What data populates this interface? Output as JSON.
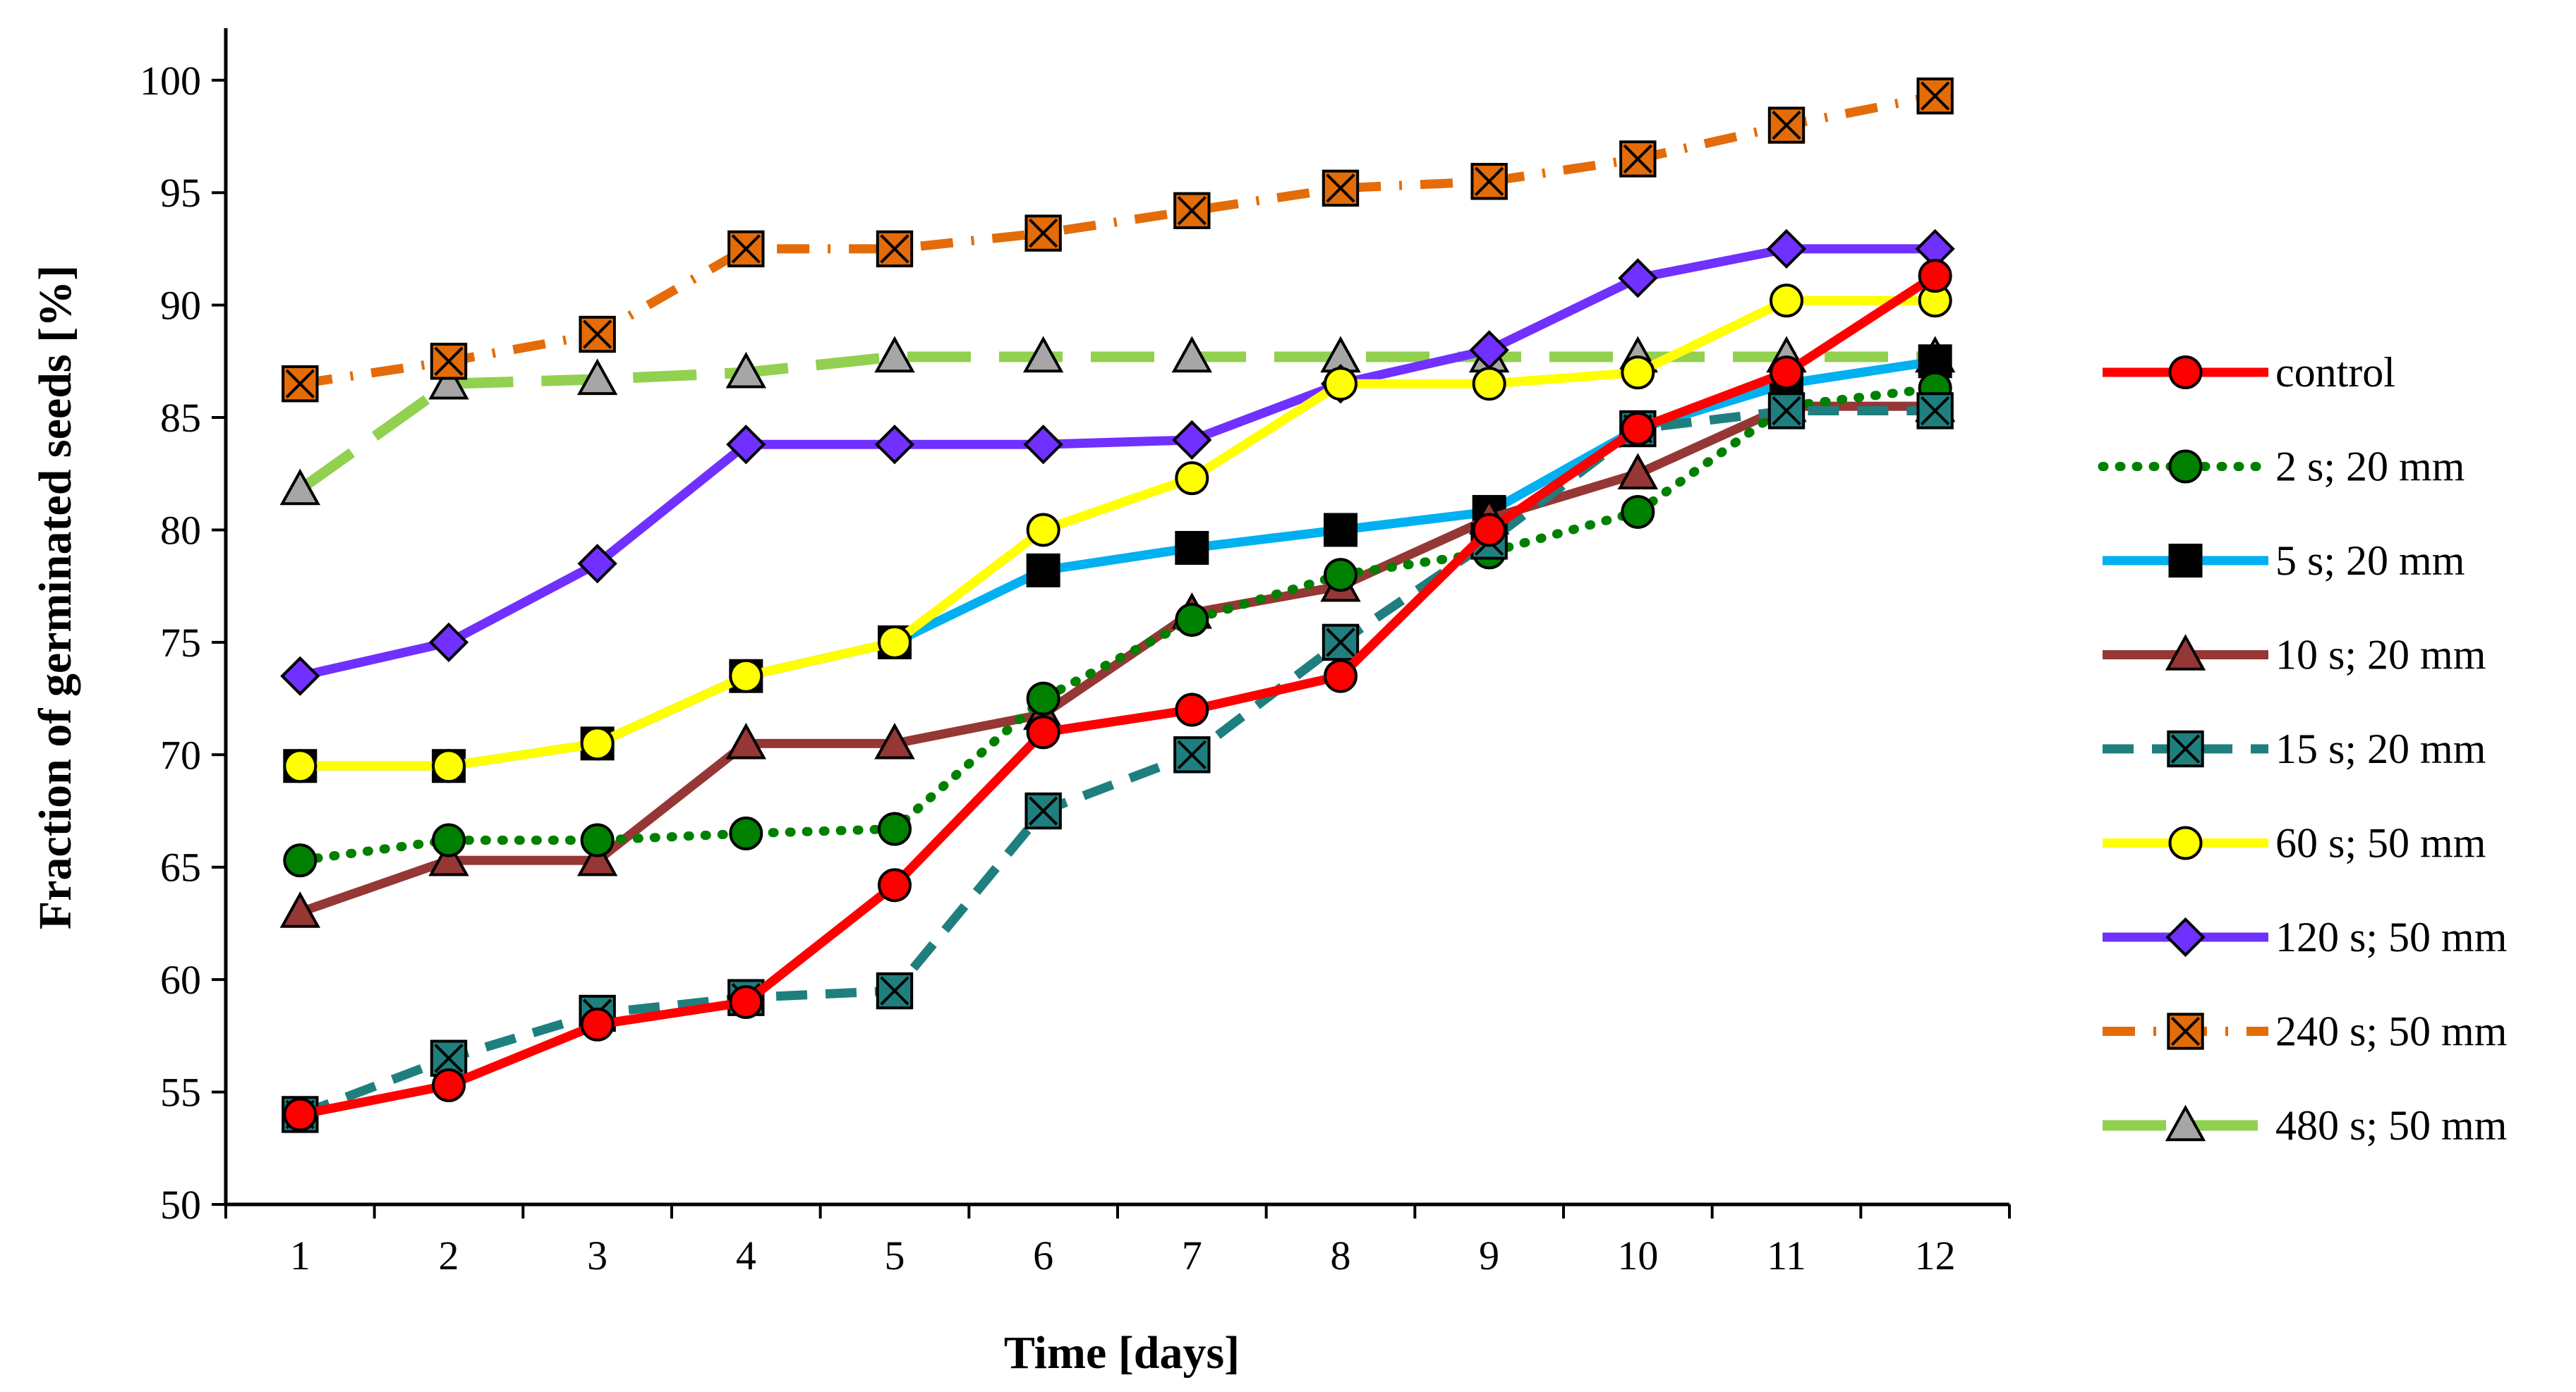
{
  "chart_data": {
    "type": "line",
    "title": "",
    "xlabel": "Time [days]",
    "ylabel": "Fraction of germinated seeds [%]",
    "x": [
      1,
      2,
      3,
      4,
      5,
      6,
      7,
      8,
      9,
      10,
      11,
      12
    ],
    "xlim": [
      0.5,
      12.5
    ],
    "ylim": [
      50,
      102
    ],
    "yticks": [
      50,
      55,
      60,
      65,
      70,
      75,
      80,
      85,
      90,
      95,
      100
    ],
    "legend_position": "right",
    "series": [
      {
        "name": "control",
        "color": "#ff0000",
        "marker": "circle",
        "dash": "solid",
        "values": [
          54,
          55.3,
          58,
          59,
          64.2,
          71,
          72,
          73.5,
          80,
          84.5,
          87,
          91.3
        ]
      },
      {
        "name": "2 s; 20 mm",
        "color": "#008000",
        "marker": "circle",
        "dash": "dot",
        "values": [
          65.3,
          66.2,
          66.2,
          66.5,
          66.7,
          72.5,
          76,
          78,
          79,
          80.8,
          85.5,
          86.3
        ]
      },
      {
        "name": "5 s; 20 mm",
        "color": "#00b0f0",
        "marker": "square",
        "dash": "solid",
        "values": [
          69.5,
          69.5,
          70.5,
          73.5,
          75,
          78.2,
          79.2,
          80,
          80.8,
          84.5,
          86.5,
          87.5
        ]
      },
      {
        "name": "10 s; 20 mm",
        "color": "#953735",
        "marker": "triangle",
        "dash": "solid",
        "values": [
          63,
          65.3,
          65.3,
          70.5,
          70.5,
          71.8,
          76.3,
          77.5,
          80.5,
          82.5,
          85.5,
          85.5
        ]
      },
      {
        "name": "15 s; 20 mm",
        "color": "#1f7f7f",
        "marker": "xsquare",
        "dash": "dash",
        "values": [
          54,
          56.5,
          58.5,
          59.2,
          59.5,
          67.5,
          70,
          75,
          79.5,
          84.5,
          85.3,
          85.3
        ]
      },
      {
        "name": "60 s; 50 mm",
        "color": "#ffff00",
        "marker": "circle",
        "dash": "solid",
        "values": [
          69.5,
          69.5,
          70.5,
          73.5,
          75,
          80,
          82.3,
          86.5,
          86.5,
          87,
          90.2,
          90.2
        ]
      },
      {
        "name": "120 s; 50 mm",
        "color": "#7030ff",
        "marker": "diamond",
        "dash": "solid",
        "values": [
          73.5,
          75,
          78.5,
          83.8,
          83.8,
          83.8,
          84,
          86.5,
          88,
          91.2,
          92.5,
          92.5
        ]
      },
      {
        "name": "240 s; 50 mm",
        "color": "#e36c09",
        "marker": "xsquare",
        "dash": "dashdot",
        "values": [
          86.5,
          87.5,
          88.7,
          92.5,
          92.5,
          93.2,
          94.2,
          95.2,
          95.5,
          96.5,
          98,
          99.3
        ]
      },
      {
        "name": "480 s; 50 mm",
        "color": "#92d050",
        "marker": "triangle",
        "dash": "longdash",
        "values": [
          81.8,
          86.5,
          86.7,
          87,
          87.7,
          87.7,
          87.7,
          87.7,
          87.7,
          87.7,
          87.7,
          87.7
        ]
      }
    ]
  }
}
